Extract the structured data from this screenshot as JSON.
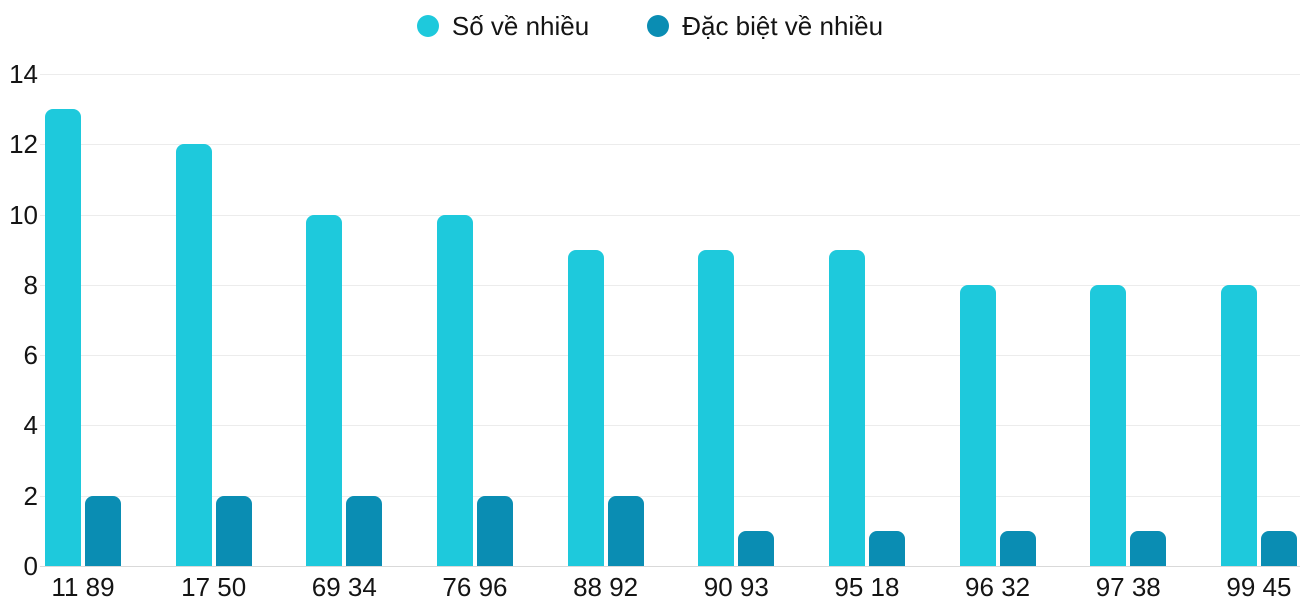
{
  "chart_data": {
    "type": "bar",
    "categories": [
      "11 89",
      "17 50",
      "69 34",
      "76 96",
      "88 92",
      "90 93",
      "95 18",
      "96 32",
      "97 38",
      "99 45"
    ],
    "series": [
      {
        "name": "Số về nhiều",
        "color": "#1ec9dc",
        "values": [
          13,
          12,
          10,
          10,
          9,
          9,
          9,
          8,
          8,
          8
        ]
      },
      {
        "name": "Đặc biệt về nhiều",
        "color": "#0a8db3",
        "values": [
          2,
          2,
          2,
          2,
          2,
          1,
          1,
          1,
          1,
          1
        ]
      }
    ],
    "title": "",
    "xlabel": "",
    "ylabel": "",
    "ylim": [
      0,
      14
    ],
    "yticks": [
      0,
      2,
      4,
      6,
      8,
      10,
      12,
      14
    ],
    "grid": true,
    "legend_position": "top",
    "colors": {
      "background": "#ffffff",
      "gridline": "#ececec",
      "axis_line": "#d9d9d9",
      "text": "#141414"
    }
  }
}
